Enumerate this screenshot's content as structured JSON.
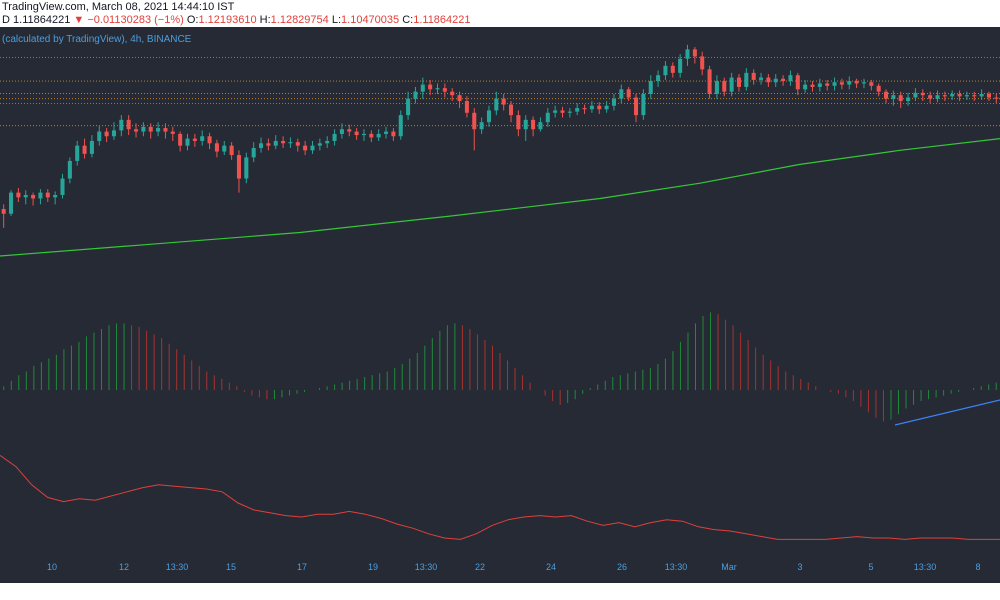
{
  "header": {
    "source_line": "TradingView.com, March 08, 2021 14:44:10 IST",
    "quote_prefix": "D",
    "last_price": "1.11864221",
    "change_text": "−0.01130283 (−1%)",
    "open_label": "O:",
    "open_value": "1.12193610",
    "high_label": "H:",
    "high_value": "1.12829754",
    "low_label": "L:",
    "low_value": "1.10470035",
    "close_label": "C:",
    "close_value": "1.11864221"
  },
  "legend_text": "(calculated by TradingView), 4h, BINANCE",
  "colors": {
    "background": "#262a34",
    "candle_up": "#26a69a",
    "candle_down": "#ef5350",
    "moving_average": "#34c838",
    "histogram_up": "#1f8a3a",
    "histogram_down": "#a8322e",
    "oscillator": "#e0403b",
    "trend_line": "#3b82f6",
    "level_lines": "#d08a2a",
    "axis_labels": "#4a9fe0"
  },
  "chart_data": [
    {
      "type": "candlestick",
      "panel": "price",
      "x_ticks": [
        "10",
        "12",
        "13:30",
        "15",
        "17",
        "19",
        "13:30",
        "22",
        "24",
        "26",
        "13:30",
        "Mar",
        "3",
        "5",
        "13:30",
        "8"
      ],
      "horizontal_levels": [
        1.175,
        1.155,
        1.1445,
        1.14,
        1.136,
        1.117
      ],
      "ylim": [
        0.96,
        1.19
      ],
      "candles": [
        [
          1.046,
          1.042,
          1.05,
          1.03
        ],
        [
          1.042,
          1.06,
          1.062,
          1.04
        ],
        [
          1.06,
          1.056,
          1.064,
          1.052
        ],
        [
          1.056,
          1.058,
          1.062,
          1.05
        ],
        [
          1.058,
          1.055,
          1.06,
          1.049
        ],
        [
          1.055,
          1.06,
          1.063,
          1.05
        ],
        [
          1.06,
          1.056,
          1.063,
          1.052
        ],
        [
          1.056,
          1.058,
          1.061,
          1.05
        ],
        [
          1.058,
          1.072,
          1.076,
          1.055
        ],
        [
          1.072,
          1.087,
          1.09,
          1.068
        ],
        [
          1.087,
          1.1,
          1.104,
          1.083
        ],
        [
          1.1,
          1.093,
          1.106,
          1.089
        ],
        [
          1.093,
          1.104,
          1.109,
          1.09
        ],
        [
          1.104,
          1.112,
          1.117,
          1.1
        ],
        [
          1.112,
          1.108,
          1.115,
          1.103
        ],
        [
          1.108,
          1.113,
          1.12,
          1.105
        ],
        [
          1.113,
          1.122,
          1.126,
          1.108
        ],
        [
          1.122,
          1.114,
          1.126,
          1.109
        ],
        [
          1.114,
          1.112,
          1.119,
          1.107
        ],
        [
          1.112,
          1.116,
          1.12,
          1.108
        ],
        [
          1.116,
          1.112,
          1.119,
          1.106
        ],
        [
          1.112,
          1.115,
          1.12,
          1.108
        ],
        [
          1.115,
          1.112,
          1.119,
          1.106
        ],
        [
          1.112,
          1.11,
          1.116,
          1.104
        ],
        [
          1.11,
          1.1,
          1.112,
          1.095
        ],
        [
          1.1,
          1.106,
          1.11,
          1.096
        ],
        [
          1.106,
          1.104,
          1.11,
          1.099
        ],
        [
          1.104,
          1.108,
          1.113,
          1.1
        ],
        [
          1.108,
          1.102,
          1.111,
          1.097
        ],
        [
          1.102,
          1.095,
          1.105,
          1.09
        ],
        [
          1.095,
          1.1,
          1.104,
          1.092
        ],
        [
          1.1,
          1.092,
          1.103,
          1.088
        ],
        [
          1.092,
          1.072,
          1.096,
          1.06
        ],
        [
          1.072,
          1.09,
          1.094,
          1.068
        ],
        [
          1.09,
          1.098,
          1.103,
          1.086
        ],
        [
          1.098,
          1.102,
          1.107,
          1.094
        ],
        [
          1.102,
          1.1,
          1.106,
          1.096
        ],
        [
          1.1,
          1.104,
          1.109,
          1.097
        ],
        [
          1.104,
          1.102,
          1.108,
          1.098
        ],
        [
          1.102,
          1.103,
          1.107,
          1.098
        ],
        [
          1.103,
          1.1,
          1.106,
          1.095
        ],
        [
          1.1,
          1.096,
          1.104,
          1.092
        ],
        [
          1.096,
          1.1,
          1.104,
          1.093
        ],
        [
          1.1,
          1.102,
          1.106,
          1.096
        ],
        [
          1.102,
          1.104,
          1.108,
          1.098
        ],
        [
          1.104,
          1.11,
          1.114,
          1.1
        ],
        [
          1.11,
          1.114,
          1.119,
          1.106
        ],
        [
          1.114,
          1.112,
          1.118,
          1.108
        ],
        [
          1.112,
          1.109,
          1.115,
          1.105
        ],
        [
          1.109,
          1.11,
          1.114,
          1.104
        ],
        [
          1.11,
          1.107,
          1.113,
          1.103
        ],
        [
          1.107,
          1.11,
          1.114,
          1.104
        ],
        [
          1.11,
          1.112,
          1.116,
          1.106
        ],
        [
          1.112,
          1.108,
          1.115,
          1.104
        ],
        [
          1.108,
          1.126,
          1.13,
          1.105
        ],
        [
          1.126,
          1.14,
          1.146,
          1.122
        ],
        [
          1.14,
          1.146,
          1.15,
          1.136
        ],
        [
          1.146,
          1.152,
          1.158,
          1.14
        ],
        [
          1.152,
          1.148,
          1.156,
          1.143
        ],
        [
          1.148,
          1.149,
          1.153,
          1.144
        ],
        [
          1.149,
          1.146,
          1.153,
          1.141
        ],
        [
          1.146,
          1.143,
          1.149,
          1.138
        ],
        [
          1.143,
          1.138,
          1.146,
          1.132
        ],
        [
          1.138,
          1.128,
          1.142,
          1.124
        ],
        [
          1.128,
          1.114,
          1.132,
          1.096
        ],
        [
          1.114,
          1.12,
          1.124,
          1.11
        ],
        [
          1.12,
          1.13,
          1.134,
          1.116
        ],
        [
          1.13,
          1.14,
          1.146,
          1.126
        ],
        [
          1.14,
          1.135,
          1.144,
          1.13
        ],
        [
          1.135,
          1.126,
          1.138,
          1.12
        ],
        [
          1.126,
          1.114,
          1.13,
          1.108
        ],
        [
          1.114,
          1.122,
          1.126,
          1.104
        ],
        [
          1.122,
          1.114,
          1.125,
          1.108
        ],
        [
          1.114,
          1.12,
          1.124,
          1.112
        ],
        [
          1.12,
          1.128,
          1.132,
          1.116
        ],
        [
          1.128,
          1.13,
          1.134,
          1.124
        ],
        [
          1.13,
          1.128,
          1.133,
          1.124
        ],
        [
          1.128,
          1.129,
          1.132,
          1.124
        ],
        [
          1.129,
          1.132,
          1.136,
          1.126
        ],
        [
          1.132,
          1.131,
          1.135,
          1.127
        ],
        [
          1.131,
          1.134,
          1.138,
          1.128
        ],
        [
          1.134,
          1.131,
          1.137,
          1.127
        ],
        [
          1.131,
          1.134,
          1.138,
          1.128
        ],
        [
          1.134,
          1.14,
          1.144,
          1.13
        ],
        [
          1.14,
          1.148,
          1.152,
          1.136
        ],
        [
          1.148,
          1.141,
          1.15,
          1.138
        ],
        [
          1.141,
          1.126,
          1.144,
          1.12
        ],
        [
          1.126,
          1.144,
          1.148,
          1.122
        ],
        [
          1.144,
          1.155,
          1.16,
          1.14
        ],
        [
          1.155,
          1.16,
          1.164,
          1.15
        ],
        [
          1.16,
          1.168,
          1.172,
          1.156
        ],
        [
          1.168,
          1.162,
          1.171,
          1.158
        ],
        [
          1.162,
          1.174,
          1.178,
          1.158
        ],
        [
          1.174,
          1.182,
          1.186,
          1.168
        ],
        [
          1.182,
          1.176,
          1.184,
          1.17
        ],
        [
          1.176,
          1.165,
          1.18,
          1.16
        ],
        [
          1.165,
          1.144,
          1.168,
          1.14
        ],
        [
          1.144,
          1.155,
          1.16,
          1.14
        ],
        [
          1.155,
          1.146,
          1.158,
          1.142
        ],
        [
          1.146,
          1.158,
          1.162,
          1.142
        ],
        [
          1.158,
          1.15,
          1.161,
          1.146
        ],
        [
          1.15,
          1.162,
          1.166,
          1.147
        ],
        [
          1.162,
          1.156,
          1.165,
          1.152
        ],
        [
          1.156,
          1.158,
          1.162,
          1.152
        ],
        [
          1.158,
          1.154,
          1.161,
          1.15
        ],
        [
          1.154,
          1.157,
          1.161,
          1.15
        ],
        [
          1.157,
          1.155,
          1.16,
          1.151
        ],
        [
          1.155,
          1.16,
          1.164,
          1.151
        ],
        [
          1.16,
          1.148,
          1.162,
          1.143
        ],
        [
          1.148,
          1.152,
          1.156,
          1.145
        ],
        [
          1.152,
          1.15,
          1.155,
          1.146
        ],
        [
          1.15,
          1.153,
          1.157,
          1.146
        ],
        [
          1.153,
          1.151,
          1.156,
          1.147
        ],
        [
          1.151,
          1.154,
          1.158,
          1.147
        ],
        [
          1.154,
          1.152,
          1.157,
          1.148
        ],
        [
          1.152,
          1.155,
          1.159,
          1.148
        ],
        [
          1.155,
          1.153,
          1.157,
          1.149
        ],
        [
          1.153,
          1.154,
          1.157,
          1.149
        ],
        [
          1.154,
          1.151,
          1.156,
          1.147
        ],
        [
          1.151,
          1.146,
          1.153,
          1.142
        ],
        [
          1.146,
          1.14,
          1.148,
          1.136
        ],
        [
          1.14,
          1.143,
          1.147,
          1.134
        ],
        [
          1.143,
          1.138,
          1.146,
          1.132
        ],
        [
          1.138,
          1.141,
          1.145,
          1.134
        ],
        [
          1.141,
          1.145,
          1.149,
          1.138
        ],
        [
          1.145,
          1.143,
          1.148,
          1.138
        ],
        [
          1.143,
          1.14,
          1.146,
          1.136
        ],
        [
          1.14,
          1.143,
          1.147,
          1.137
        ],
        [
          1.143,
          1.142,
          1.146,
          1.138
        ],
        [
          1.142,
          1.144,
          1.147,
          1.139
        ],
        [
          1.144,
          1.142,
          1.147,
          1.138
        ],
        [
          1.142,
          1.143,
          1.146,
          1.139
        ],
        [
          1.143,
          1.142,
          1.146,
          1.138
        ],
        [
          1.142,
          1.144,
          1.148,
          1.139
        ],
        [
          1.144,
          1.141,
          1.146,
          1.138
        ],
        [
          1.141,
          1.14,
          1.144,
          1.136
        ]
      ],
      "moving_average": [
        [
          0,
          1.006
        ],
        [
          150,
          1.016
        ],
        [
          300,
          1.026
        ],
        [
          450,
          1.04
        ],
        [
          600,
          1.055
        ],
        [
          700,
          1.068
        ],
        [
          800,
          1.084
        ],
        [
          900,
          1.096
        ],
        [
          1000,
          1.106
        ]
      ]
    },
    {
      "type": "bar",
      "panel": "histogram",
      "values": [
        2,
        5,
        8,
        10,
        13,
        15,
        17,
        19,
        22,
        24,
        26,
        29,
        31,
        33,
        35,
        36,
        36,
        35,
        34,
        32,
        30,
        28,
        25,
        22,
        19,
        16,
        13,
        10,
        8,
        6,
        4,
        2,
        -1,
        -3,
        -4,
        -5,
        -5,
        -4,
        -3,
        -2,
        -1,
        0,
        1,
        2,
        3,
        4,
        5,
        6,
        7,
        8,
        9,
        10,
        12,
        14,
        17,
        20,
        24,
        28,
        32,
        35,
        36,
        35,
        33,
        30,
        27,
        24,
        20,
        16,
        12,
        8,
        4,
        0,
        -3,
        -6,
        -8,
        -7,
        -5,
        -2,
        1,
        3,
        5,
        7,
        8,
        9,
        10,
        11,
        12,
        14,
        17,
        21,
        26,
        31,
        36,
        40,
        42,
        41,
        38,
        35,
        31,
        27,
        23,
        19,
        16,
        13,
        10,
        8,
        6,
        4,
        2,
        0,
        -1,
        -2,
        -4,
        -6,
        -9,
        -12,
        -15,
        -17,
        -16,
        -13,
        -10,
        -8,
        -6,
        -5,
        -4,
        -3,
        -2,
        -1,
        0,
        1,
        2,
        3,
        4
      ],
      "trend_line_x": [
        895,
        1000
      ]
    },
    {
      "type": "line",
      "panel": "oscillator",
      "values": [
        64,
        56,
        43,
        34,
        31,
        33,
        32,
        35,
        38,
        41,
        43,
        42,
        41,
        40,
        38,
        30,
        25,
        23,
        21,
        20,
        22,
        22,
        24,
        22,
        19,
        15,
        12,
        8,
        5,
        4,
        8,
        14,
        18,
        20,
        21,
        20,
        21,
        17,
        14,
        16,
        13,
        16,
        18,
        17,
        13,
        11,
        10,
        8,
        6,
        4,
        4,
        4,
        4,
        5,
        6,
        5,
        5,
        4,
        5,
        5,
        5,
        4,
        4,
        4
      ]
    }
  ]
}
